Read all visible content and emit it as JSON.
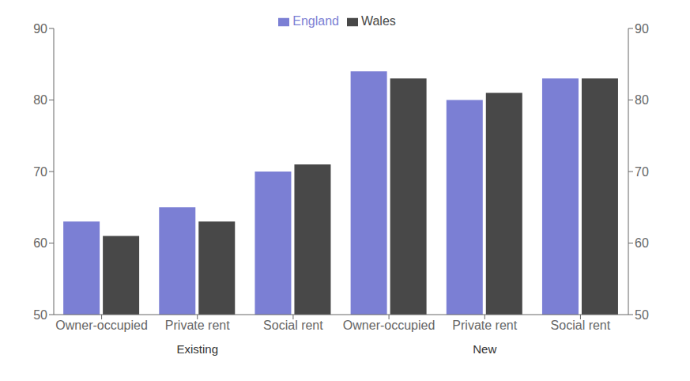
{
  "chart_data": {
    "type": "bar",
    "categories": [
      "Owner-occupied",
      "Private rent",
      "Social rent",
      "Owner-occupied",
      "Private rent",
      "Social rent"
    ],
    "groups": [
      "Existing",
      "New"
    ],
    "series": [
      {
        "name": "England",
        "color": "#7B7FD4",
        "values": [
          63,
          65,
          70,
          84,
          80,
          83
        ]
      },
      {
        "name": "Wales",
        "color": "#484848",
        "values": [
          61,
          63,
          71,
          83,
          81,
          83
        ]
      }
    ],
    "ylim": [
      50,
      90
    ],
    "yticks": [
      50,
      60,
      70,
      80,
      90
    ],
    "y2lim": [
      50,
      90
    ],
    "y2ticks": [
      50,
      60,
      70,
      80,
      90
    ],
    "grid": false,
    "legend": "top"
  }
}
